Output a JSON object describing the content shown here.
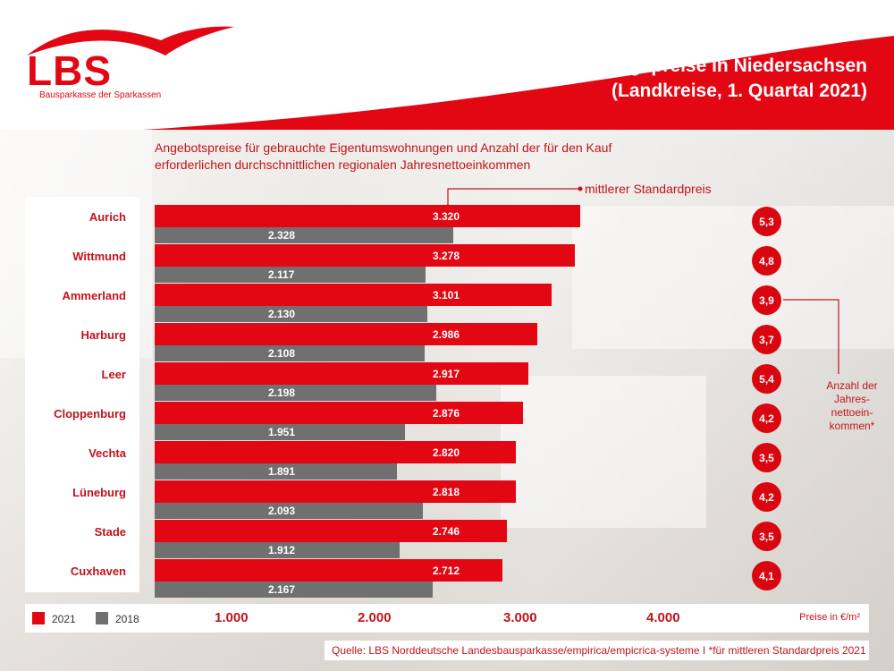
{
  "brand": {
    "logo_text": "LBS",
    "logo_subtitle": "Bausparkasse der Sparkassen",
    "red": "#e30613",
    "gray": "#707070"
  },
  "header": {
    "title_line1": "Wohnungspreise in Niedersachsen",
    "title_line2": "(Landkreise, 1. Quartal 2021)"
  },
  "subtitle": "Angebotspreise für gebrauchte Eigentumswohnungen und Anzahl der für den Kauf erforderlichen durchschnittlichen regionalen Jahresnettoeinkommen",
  "annotations": {
    "standard_price": "mittlerer Standardpreis",
    "income_count": "Anzahl der Jahres-nettoein-kommen*"
  },
  "legend": {
    "series_2021": "2021",
    "series_2018": "2018"
  },
  "axis": {
    "ticks": [
      "1.000",
      "2.000",
      "3.000",
      "4.000"
    ],
    "unit": "Preise in €/m²"
  },
  "source": "Quelle: LBS Norddeutsche Landesbausparkasse/empirica/empicrica-systeme   I   *für mittleren Standardpreis 2021",
  "chart_data": {
    "type": "bar",
    "orientation": "horizontal",
    "categories": [
      "Aurich",
      "Wittmund",
      "Ammerland",
      "Harburg",
      "Leer",
      "Cloppenburg",
      "Vechta",
      "Lüneburg",
      "Stade",
      "Cuxhaven"
    ],
    "series": [
      {
        "name": "2021",
        "values": [
          3320,
          3278,
          3101,
          2986,
          2917,
          2876,
          2820,
          2818,
          2746,
          2712
        ],
        "labels": [
          "3.320",
          "3.278",
          "3.101",
          "2.986",
          "2.917",
          "2.876",
          "2.820",
          "2.818",
          "2.746",
          "2.712"
        ],
        "color": "#e30613"
      },
      {
        "name": "2018",
        "values": [
          2328,
          2117,
          2130,
          2108,
          2198,
          1951,
          1891,
          2093,
          1912,
          2167
        ],
        "labels": [
          "2.328",
          "2.117",
          "2.130",
          "2.108",
          "2.198",
          "1.951",
          "1.891",
          "2.093",
          "1.912",
          "2.167"
        ],
        "color": "#707070"
      }
    ],
    "income_years": [
      "5,3",
      "4,8",
      "3,9",
      "3,7",
      "5,4",
      "4,2",
      "3,5",
      "4,2",
      "3,5",
      "4,1"
    ],
    "xlim": [
      0,
      4500
    ],
    "xlabel": "Preise in €/m²",
    "legend": "bottom-left"
  }
}
